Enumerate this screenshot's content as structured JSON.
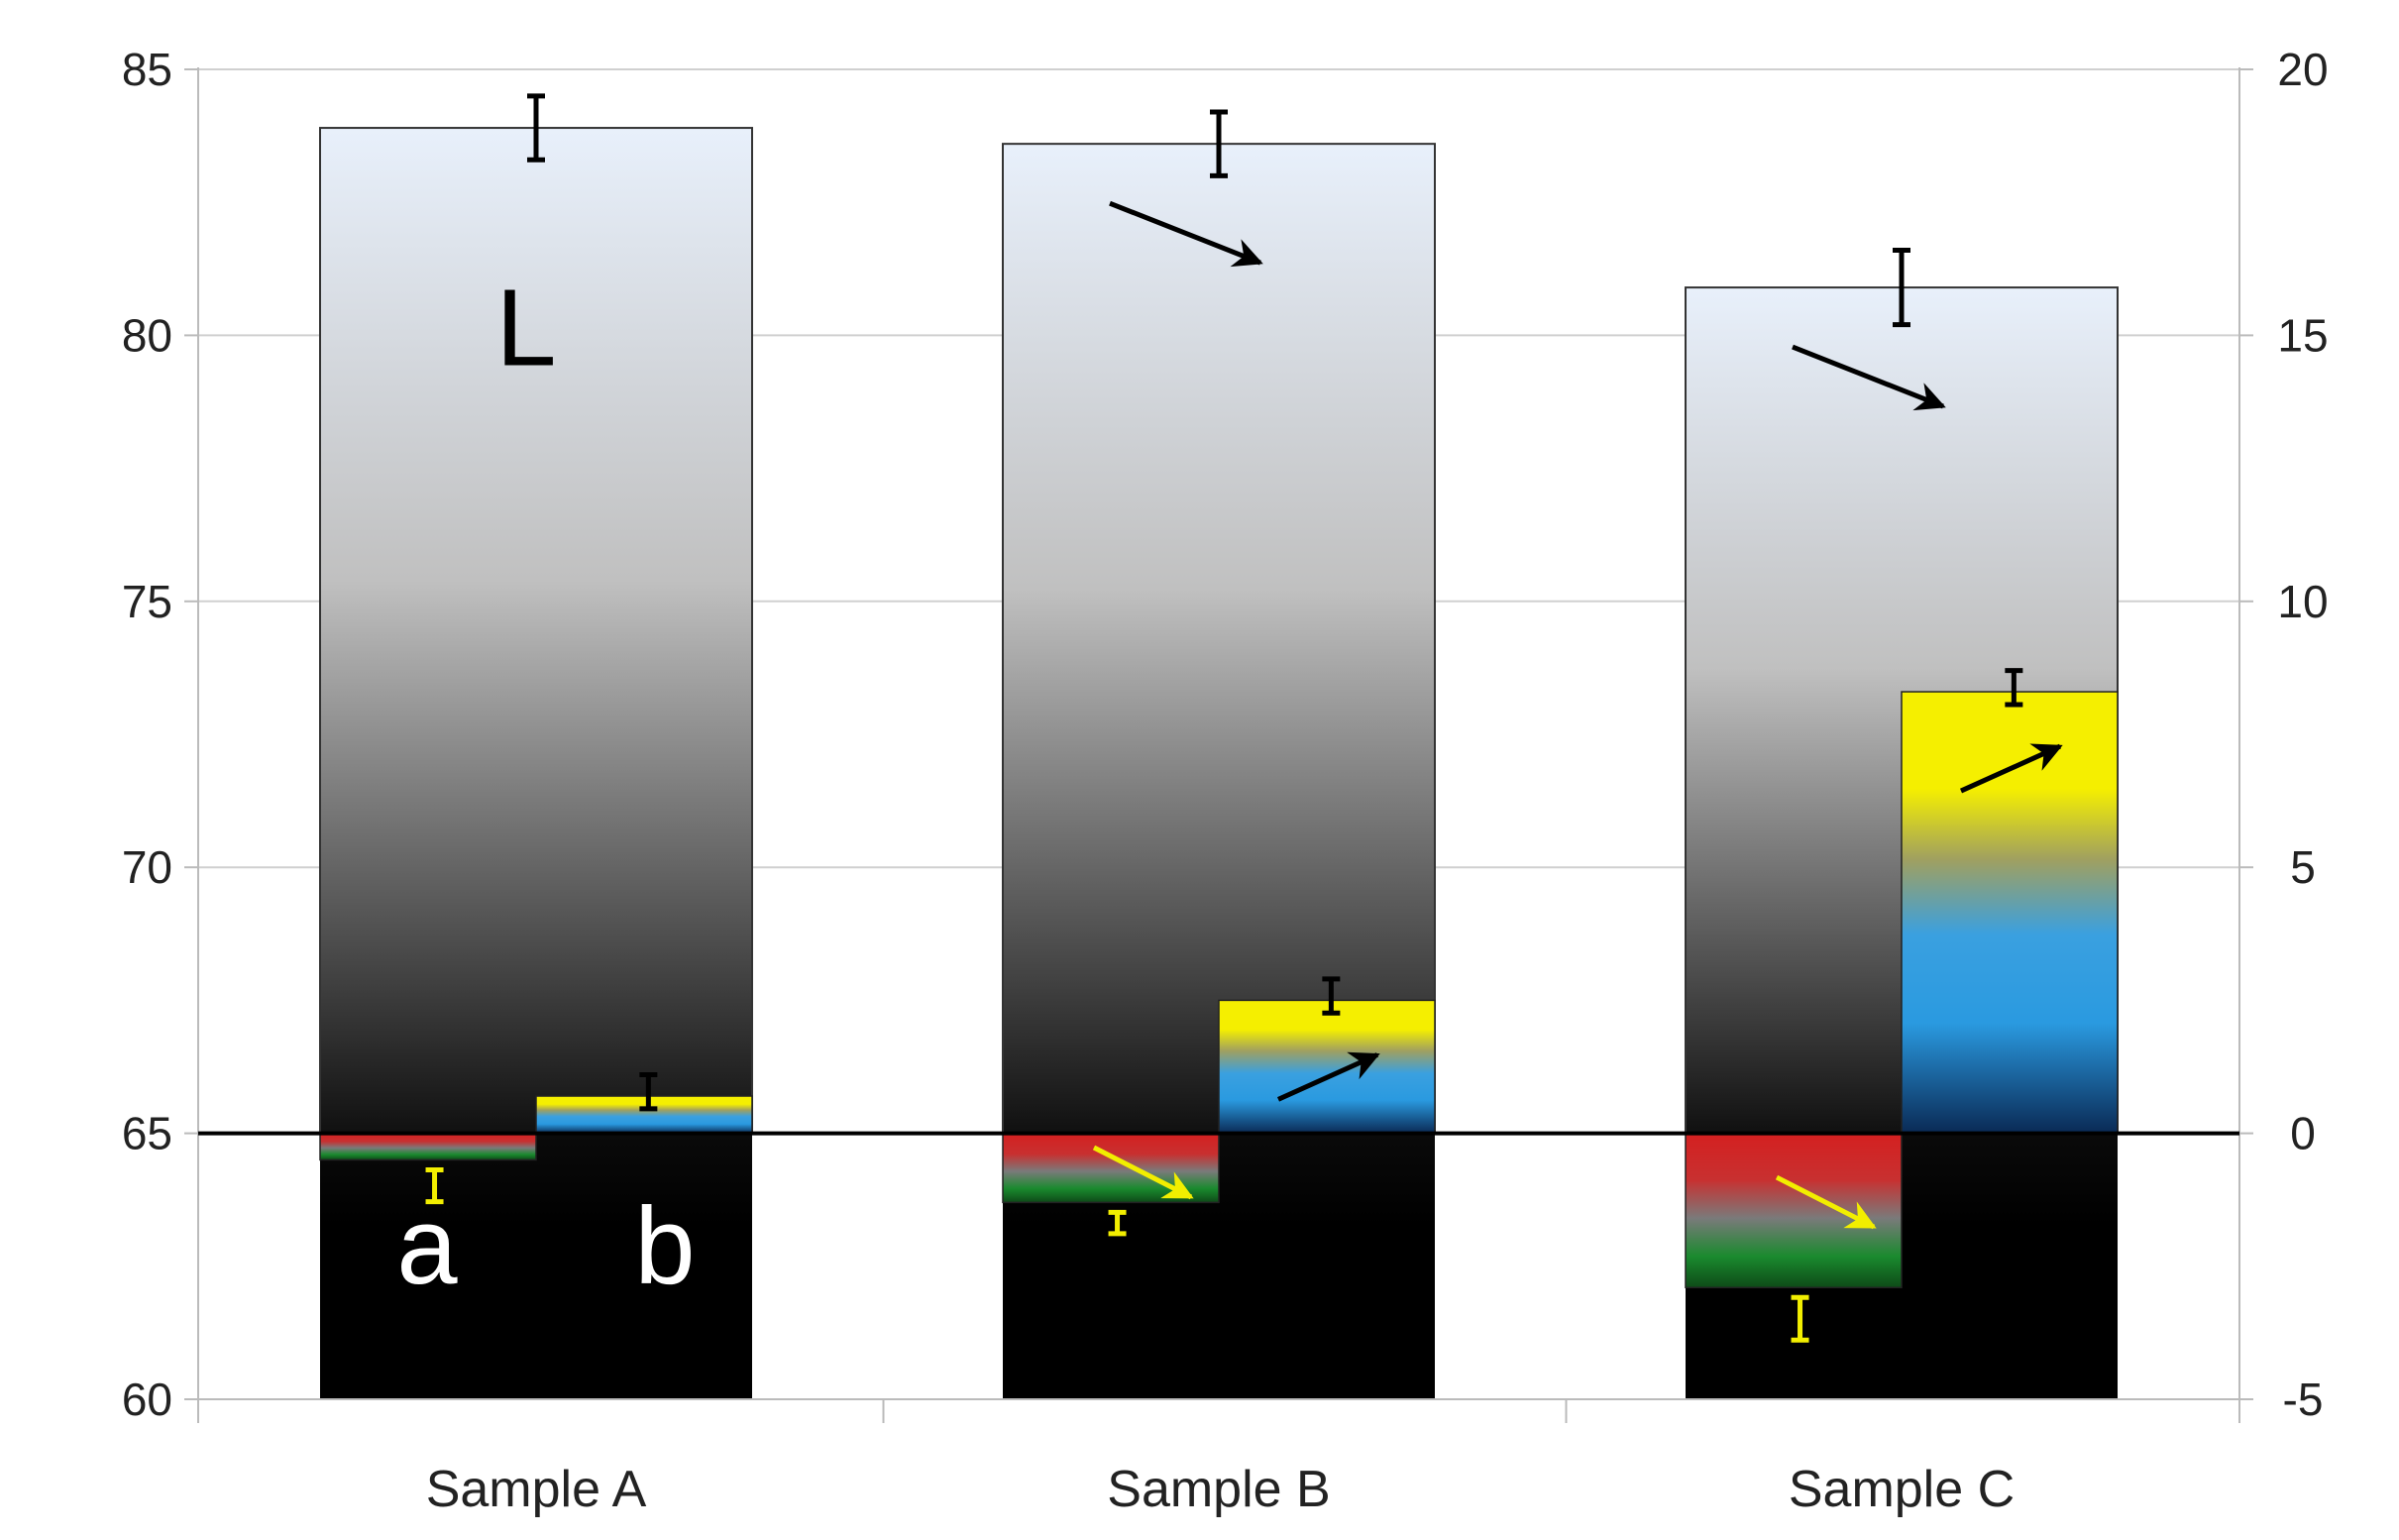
{
  "chart_data": {
    "type": "bar",
    "title": "",
    "xlabel": "",
    "ylabel": "",
    "categories": [
      "Sample A",
      "Sample B",
      "Sample C"
    ],
    "series": [
      {
        "name": "L",
        "axis": "left",
        "values": [
          83.9,
          83.6,
          80.9
        ],
        "error": [
          0.6,
          0.6,
          0.7
        ]
      },
      {
        "name": "a",
        "axis": "right",
        "values": [
          -0.5,
          -1.3,
          -2.9
        ],
        "error": [
          0.3,
          0.2,
          0.4
        ]
      },
      {
        "name": "b",
        "axis": "right",
        "values": [
          0.7,
          2.5,
          8.3
        ],
        "error": [
          0.4,
          0.4,
          0.4
        ]
      }
    ],
    "trend_arrows": {
      "L": [
        "none",
        "down",
        "down"
      ],
      "a": [
        "none",
        "down",
        "down"
      ],
      "b": [
        "none",
        "up",
        "up"
      ]
    },
    "y_left": {
      "ylim": [
        60,
        85
      ],
      "ticks": [
        60,
        65,
        70,
        75,
        80,
        85
      ]
    },
    "y_right": {
      "ylim": [
        -5,
        20
      ],
      "ticks": [
        -5,
        0,
        5,
        10,
        15,
        20
      ]
    },
    "grid": true,
    "legend": "none",
    "annotations": {
      "L_label": "L",
      "a_label": "a",
      "b_label": "b"
    },
    "colors": {
      "L_top": "#e8f0fb",
      "L_mid": "#c8c8c8",
      "L_bottom": "#1a1a1a",
      "a_red": "#d42020",
      "a_green": "#1a8a2e",
      "b_yellow": "#f5ef00",
      "b_blue": "#2a9ae0",
      "b_navy": "#0a2a55",
      "grid": "#d0d0d0",
      "zero_line": "#000000",
      "error_black": "#000000",
      "error_yellow": "#f2ee00"
    }
  }
}
